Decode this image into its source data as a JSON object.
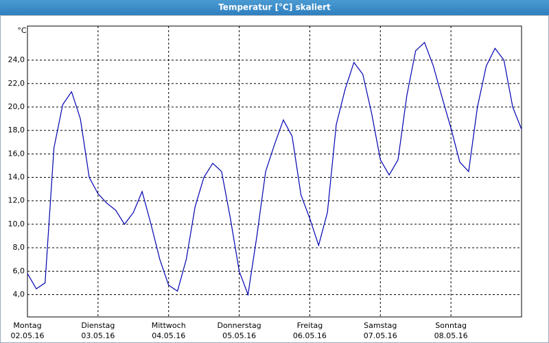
{
  "chart_data": {
    "type": "line",
    "title": "Temperatur [°C] skaliert",
    "y_label": "°C",
    "categories": [
      "Montag",
      null,
      null,
      null,
      null,
      null,
      null,
      null,
      "Dienstag",
      null,
      null,
      null,
      null,
      null,
      null,
      null,
      "Mittwoch",
      null,
      null,
      null,
      null,
      null,
      null,
      null,
      "Donnerstag",
      null,
      null,
      null,
      null,
      null,
      null,
      null,
      "Freitag",
      null,
      null,
      null,
      null,
      null,
      null,
      null,
      "Samstag",
      null,
      null,
      null,
      null,
      null,
      null,
      null,
      "Sonntag",
      null,
      null,
      null,
      null,
      null,
      null,
      null,
      null
    ],
    "dates": [
      "02.05.16",
      null,
      null,
      null,
      null,
      null,
      null,
      null,
      "03.05.16",
      null,
      null,
      null,
      null,
      null,
      null,
      null,
      "04.05.16",
      null,
      null,
      null,
      null,
      null,
      null,
      null,
      "05.05.16",
      null,
      null,
      null,
      null,
      null,
      null,
      null,
      "06.05.16",
      null,
      null,
      null,
      null,
      null,
      null,
      null,
      "07.05.16",
      null,
      null,
      null,
      null,
      null,
      null,
      null,
      "08.05.16",
      null,
      null,
      null,
      null,
      null,
      null,
      null,
      null
    ],
    "values": [
      5.8,
      4.5,
      5.0,
      16.5,
      20.2,
      21.3,
      19.0,
      14.0,
      12.6,
      11.8,
      11.2,
      10.0,
      11.0,
      12.8,
      10.0,
      7.0,
      4.8,
      4.3,
      7.0,
      11.5,
      14.0,
      15.2,
      14.5,
      10.5,
      6.0,
      4.0,
      9.0,
      14.5,
      16.8,
      18.9,
      17.5,
      12.5,
      10.5,
      8.2,
      11.0,
      18.5,
      21.5,
      23.8,
      22.8,
      19.5,
      15.5,
      14.2,
      15.5,
      21.0,
      24.8,
      25.5,
      23.5,
      20.8,
      18.2,
      15.3,
      14.5,
      20.0,
      23.5,
      25.0,
      24.0,
      20.0,
      18.1
    ],
    "color": "#0000b0",
    "ylim": [
      2.1,
      26.9
    ],
    "yticks": [
      {
        "value": 4,
        "label": "4,0"
      },
      {
        "value": 6,
        "label": "6,0"
      },
      {
        "value": 8,
        "label": "8,0"
      },
      {
        "value": 10,
        "label": "10,0"
      },
      {
        "value": 12,
        "label": "12,0"
      },
      {
        "value": 14,
        "label": "14,0"
      },
      {
        "value": 16,
        "label": "16,0"
      },
      {
        "value": 18,
        "label": "18,0"
      },
      {
        "value": 20,
        "label": "20,0"
      },
      {
        "value": 22,
        "label": "22,0"
      },
      {
        "value": 24,
        "label": "24,0"
      }
    ],
    "grid": true
  }
}
